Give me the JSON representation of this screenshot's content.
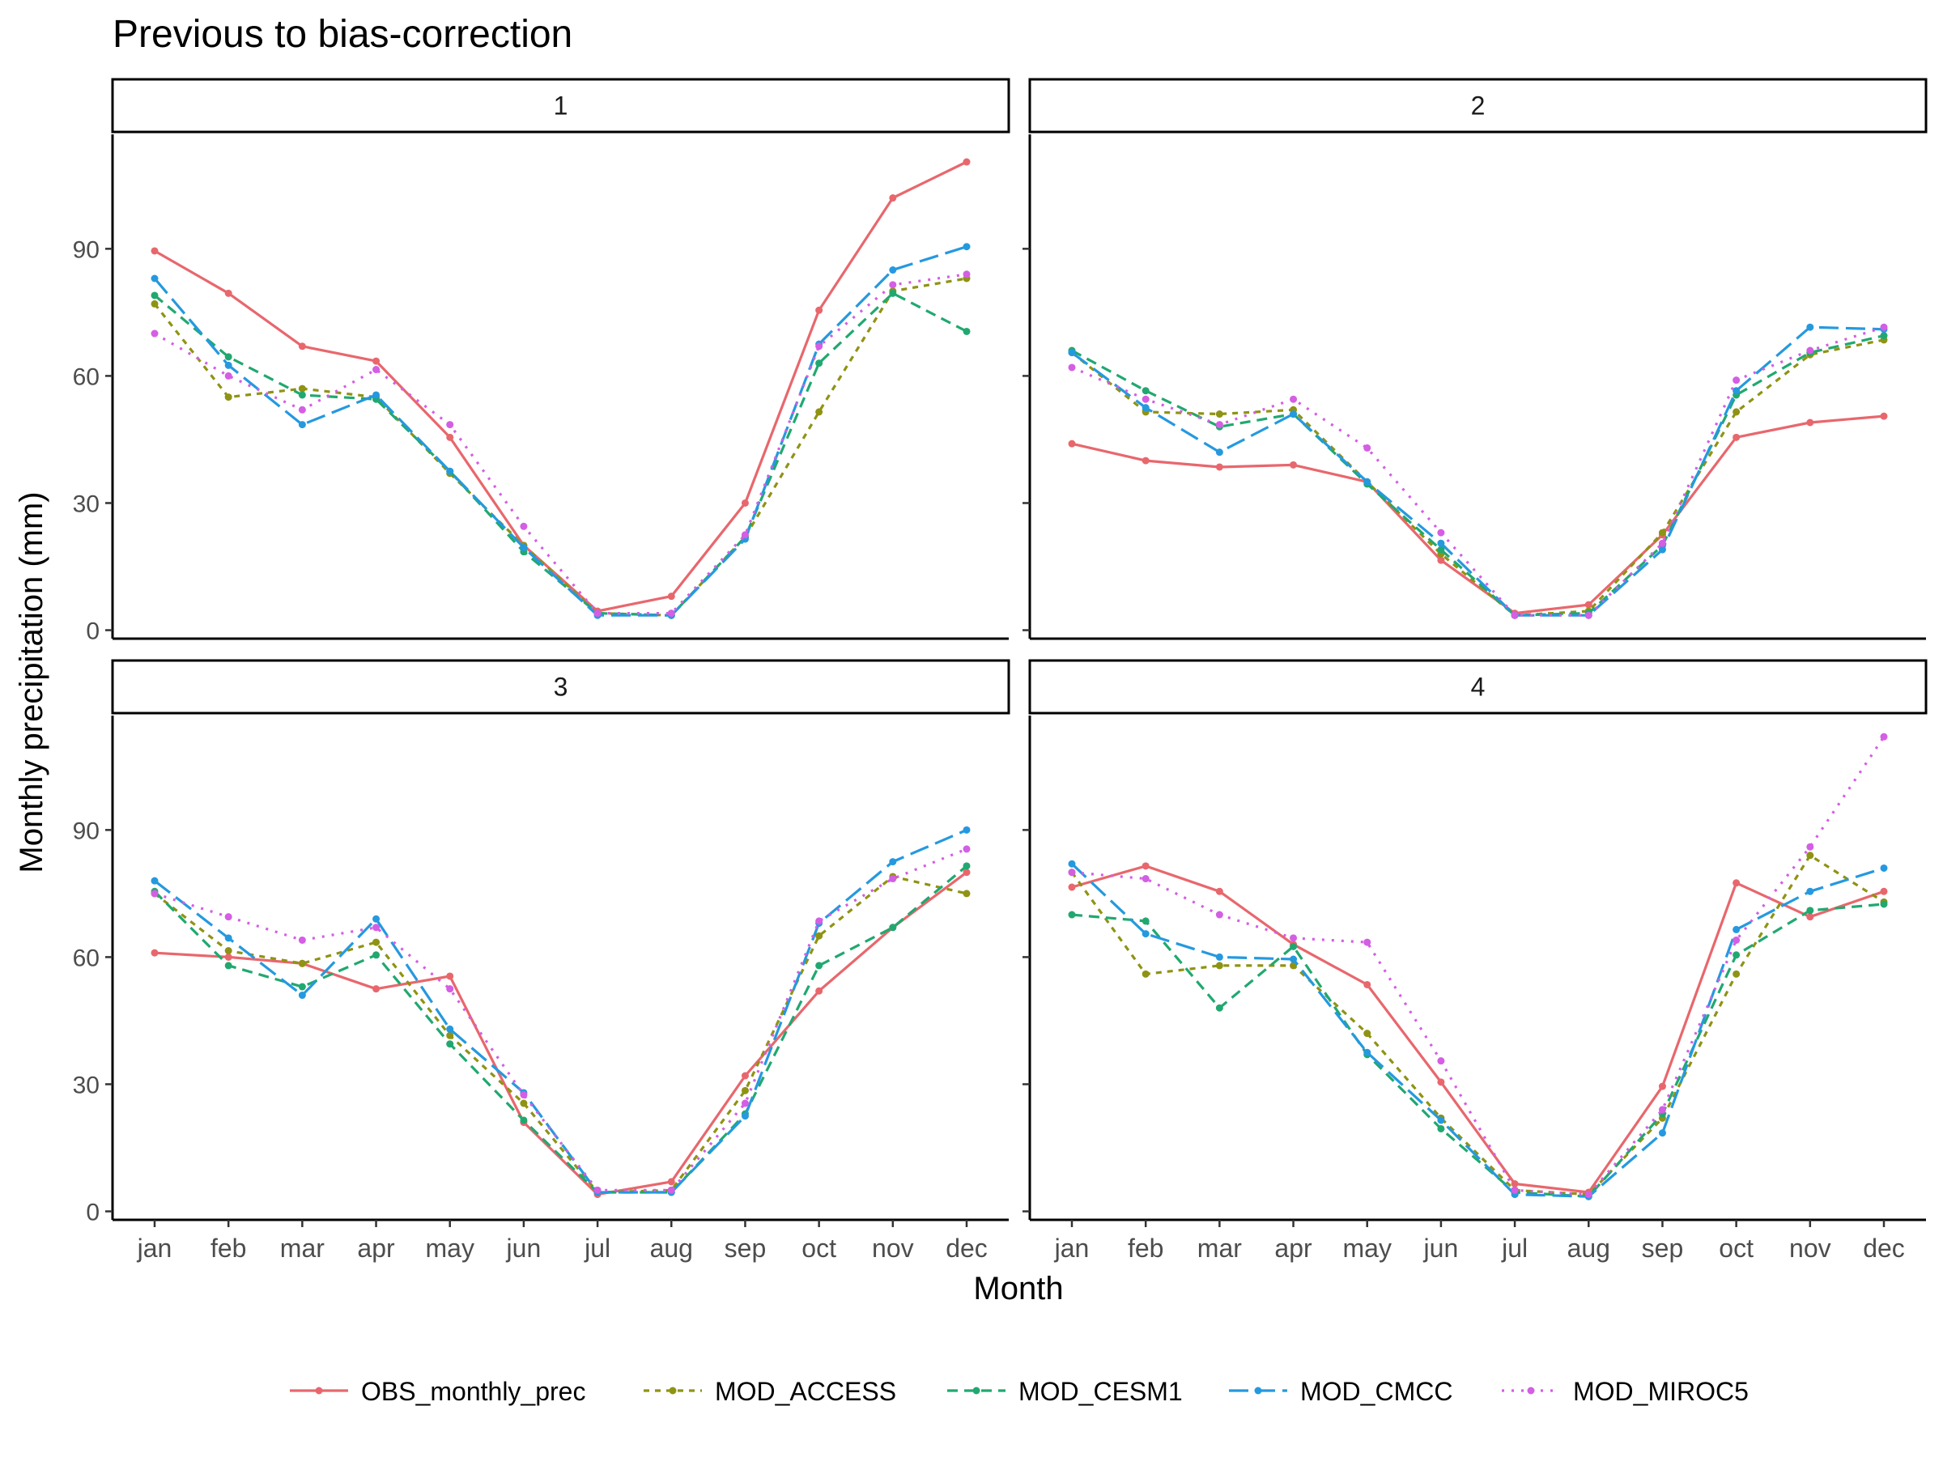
{
  "chart_data": {
    "type": "line",
    "title": "Previous to bias-correction",
    "xlabel": "Month",
    "ylabel": "Monthly precipitation (mm)",
    "categories": [
      "jan",
      "feb",
      "mar",
      "apr",
      "may",
      "jun",
      "jul",
      "aug",
      "sep",
      "oct",
      "nov",
      "dec"
    ],
    "ylim": [
      -2,
      117
    ],
    "yticks": [
      0,
      30,
      60,
      90
    ],
    "grid": false,
    "legend_position": "bottom",
    "series_styles": [
      {
        "name": "OBS_monthly_prec",
        "color": "#E8676D",
        "dash": "none"
      },
      {
        "name": "MOD_ACCESS",
        "color": "#8F9313",
        "dash": "dotted"
      },
      {
        "name": "MOD_CESM1",
        "color": "#21A870",
        "dash": "dashed"
      },
      {
        "name": "MOD_CMCC",
        "color": "#2599DF",
        "dash": "longdash"
      },
      {
        "name": "MOD_MIROC5",
        "color": "#D45EE4",
        "dash": "dotted-fine"
      }
    ],
    "panels": [
      {
        "label": "1",
        "series": [
          {
            "name": "OBS_monthly_prec",
            "values": [
              89.5,
              79.5,
              67,
              63.5,
              45.5,
              20,
              4.5,
              8,
              30,
              75.5,
              102,
              110.5
            ]
          },
          {
            "name": "MOD_ACCESS",
            "values": [
              77,
              55,
              57,
              55,
              37,
              20,
              4,
              3.5,
              22,
              51.5,
              80,
              83
            ]
          },
          {
            "name": "MOD_CESM1",
            "values": [
              79,
              64.5,
              55.5,
              54.5,
              37.5,
              18.5,
              4,
              3.5,
              22,
              63,
              79.5,
              70.5
            ]
          },
          {
            "name": "MOD_CMCC",
            "values": [
              83,
              62.5,
              48.5,
              55.5,
              37.5,
              19.5,
              3.5,
              3.5,
              21.5,
              67.5,
              85,
              90.5
            ]
          },
          {
            "name": "MOD_MIROC5",
            "values": [
              70,
              60,
              52,
              61.5,
              48.5,
              24.5,
              4,
              4,
              22.5,
              67,
              81.5,
              84
            ]
          }
        ]
      },
      {
        "label": "2",
        "series": [
          {
            "name": "OBS_monthly_prec",
            "values": [
              44,
              40,
              38.5,
              39,
              35,
              16.5,
              4,
              6,
              22.5,
              45.5,
              49,
              50.5
            ]
          },
          {
            "name": "MOD_ACCESS",
            "values": [
              65.5,
              51.5,
              51,
              52,
              35,
              18,
              3.5,
              4.5,
              23,
              51.5,
              65,
              68.5
            ]
          },
          {
            "name": "MOD_CESM1",
            "values": [
              66,
              56.5,
              48,
              51,
              34.5,
              19,
              3.5,
              4,
              20,
              55.5,
              65.5,
              69.5
            ]
          },
          {
            "name": "MOD_CMCC",
            "values": [
              65.5,
              52.5,
              42,
              51,
              35,
              20.5,
              3.5,
              3.5,
              19,
              56.5,
              71.5,
              71
            ]
          },
          {
            "name": "MOD_MIROC5",
            "values": [
              62,
              54.5,
              48.5,
              54.5,
              43,
              23,
              3.5,
              3.5,
              20.5,
              59,
              66,
              71.5
            ]
          }
        ]
      },
      {
        "label": "3",
        "series": [
          {
            "name": "OBS_monthly_prec",
            "values": [
              61,
              60,
              58.5,
              52.5,
              55.5,
              21,
              4,
              7,
              32,
              52,
              67,
              80
            ]
          },
          {
            "name": "MOD_ACCESS",
            "values": [
              75,
              61.5,
              58.5,
              63.5,
              41.5,
              25.5,
              4.5,
              5,
              28.5,
              65,
              79,
              75
            ]
          },
          {
            "name": "MOD_CESM1",
            "values": [
              75.5,
              58,
              53,
              60.5,
              39.5,
              21.5,
              4.5,
              4.5,
              23,
              58,
              67,
              81.5
            ]
          },
          {
            "name": "MOD_CMCC",
            "values": [
              78,
              64.5,
              51,
              69,
              43,
              28,
              4.5,
              4.5,
              22.5,
              68,
              82.5,
              90
            ]
          },
          {
            "name": "MOD_MIROC5",
            "values": [
              75,
              69.5,
              64,
              67,
              52.5,
              27.5,
              5,
              5,
              25.5,
              68.5,
              78.5,
              85.5
            ]
          }
        ]
      },
      {
        "label": "4",
        "series": [
          {
            "name": "OBS_monthly_prec",
            "values": [
              76.5,
              81.5,
              75.5,
              63,
              53.5,
              30.5,
              6.5,
              4.5,
              29.5,
              77.5,
              69.5,
              75.5
            ]
          },
          {
            "name": "MOD_ACCESS",
            "values": [
              80,
              56,
              58,
              58,
              42,
              22,
              5,
              4,
              22,
              56,
              84,
              73
            ]
          },
          {
            "name": "MOD_CESM1",
            "values": [
              70,
              68.5,
              48,
              62.5,
              37,
              19.5,
              4.5,
              3.5,
              23,
              60.5,
              71,
              72.5
            ]
          },
          {
            "name": "MOD_CMCC",
            "values": [
              82,
              65.5,
              60,
              59.5,
              37.5,
              21.5,
              4,
              3.5,
              18.5,
              66.5,
              75.5,
              81
            ]
          },
          {
            "name": "MOD_MIROC5",
            "values": [
              80,
              78.5,
              70,
              64.5,
              63.5,
              35.5,
              5,
              4,
              24,
              64,
              86,
              112
            ]
          }
        ]
      }
    ]
  }
}
